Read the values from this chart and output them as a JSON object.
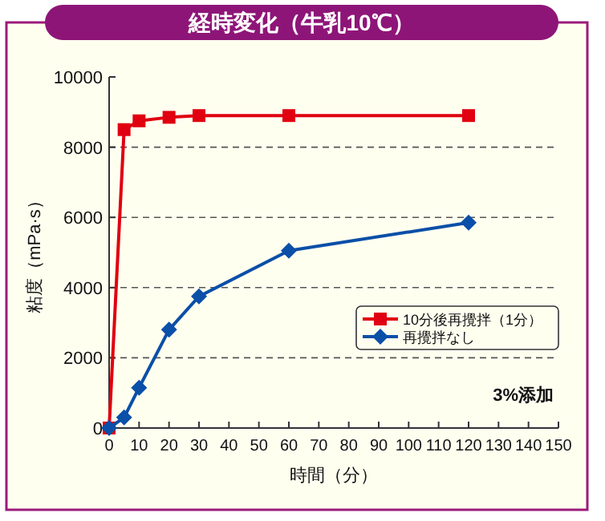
{
  "chart_data": {
    "type": "line",
    "title": "経時変化（牛乳10℃）",
    "xlabel": "時間（分）",
    "ylabel": "粘度（mPa·s）",
    "xlim": [
      0,
      150
    ],
    "xticks": [
      0,
      10,
      20,
      30,
      40,
      50,
      60,
      70,
      80,
      90,
      100,
      110,
      120,
      130,
      140,
      150
    ],
    "ylim": [
      0,
      10000
    ],
    "yticks": [
      0,
      2000,
      4000,
      6000,
      8000,
      10000
    ],
    "grid": "y",
    "legend": "right",
    "x": [
      0,
      5,
      10,
      20,
      30,
      60,
      120
    ],
    "series": [
      {
        "name": "10分後再攪拌（1分）",
        "color": "#e00010",
        "marker": "square",
        "values": [
          0,
          8500,
          8750,
          8850,
          8900,
          8900,
          8900
        ]
      },
      {
        "name": "再攪拌なし",
        "color": "#0a4fa8",
        "marker": "diamond",
        "values": [
          0,
          300,
          1150,
          2800,
          3750,
          5050,
          5850
        ]
      }
    ],
    "annotations": [
      "3%添加"
    ]
  }
}
